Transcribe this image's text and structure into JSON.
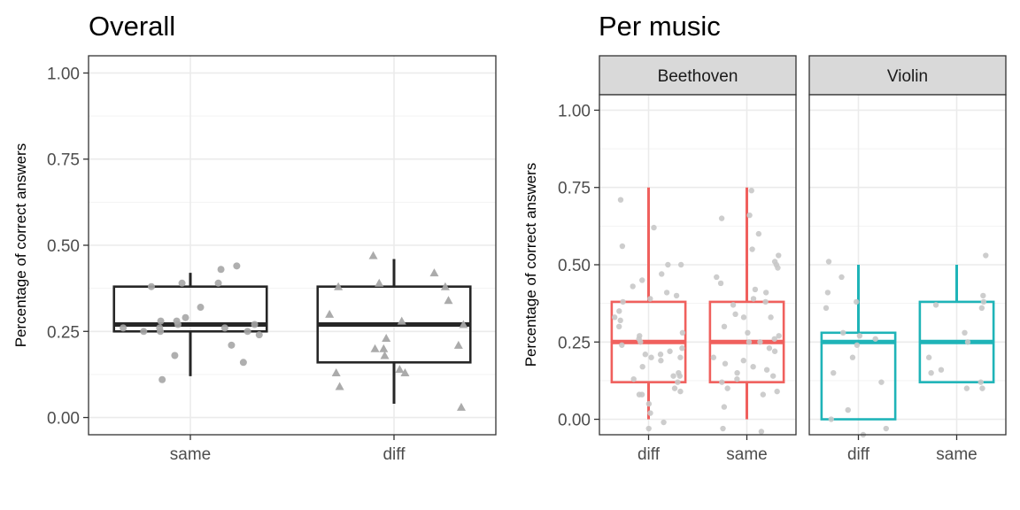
{
  "colors": {
    "overall": "#262626",
    "beethoven": "#f0605d",
    "violin": "#1fb4b8",
    "points_overall": "#a6a6a6",
    "points_facet": "#c8c8c8"
  },
  "chart_data": [
    {
      "type": "boxplot",
      "title": "Overall",
      "ylabel": "Percentage of correct answers",
      "xlabel": "",
      "ylim": [
        -0.05,
        1.05
      ],
      "yticks": [
        0.0,
        0.25,
        0.5,
        0.75,
        1.0
      ],
      "ytick_labels": [
        "0.00",
        "0.25",
        "0.50",
        "0.75",
        "1.00"
      ],
      "categories": [
        "same",
        "diff"
      ],
      "grid": true,
      "boxes": [
        {
          "category": "same",
          "whisker_low": 0.12,
          "q1": 0.25,
          "median": 0.27,
          "q3": 0.38,
          "whisker_high": 0.42
        },
        {
          "category": "diff",
          "whisker_low": 0.04,
          "q1": 0.16,
          "median": 0.27,
          "q3": 0.38,
          "whisker_high": 0.46
        }
      ],
      "points": [
        {
          "category": "same",
          "marker": "circle",
          "values": [
            0.44,
            0.39,
            0.43,
            0.39,
            0.38,
            0.32,
            0.29,
            0.28,
            0.28,
            0.27,
            0.27,
            0.26,
            0.26,
            0.26,
            0.25,
            0.25,
            0.25,
            0.24,
            0.21,
            0.18,
            0.16,
            0.11
          ]
        },
        {
          "category": "diff",
          "marker": "triangle",
          "values": [
            0.47,
            0.42,
            0.39,
            0.38,
            0.38,
            0.34,
            0.3,
            0.28,
            0.27,
            0.23,
            0.21,
            0.2,
            0.2,
            0.18,
            0.14,
            0.13,
            0.13,
            0.09,
            0.03
          ]
        }
      ]
    },
    {
      "type": "boxplot",
      "title": "Per music",
      "ylabel": "Percentage of correct answers",
      "xlabel": "",
      "ylim": [
        -0.05,
        1.05
      ],
      "yticks": [
        0.0,
        0.25,
        0.5,
        0.75,
        1.0
      ],
      "ytick_labels": [
        "0.00",
        "0.25",
        "0.50",
        "0.75",
        "1.00"
      ],
      "grid": true,
      "facets": [
        {
          "label": "Beethoven",
          "color_key": "beethoven",
          "categories": [
            "diff",
            "same"
          ],
          "boxes": [
            {
              "category": "diff",
              "whisker_low": 0.0,
              "q1": 0.12,
              "median": 0.25,
              "q3": 0.38,
              "whisker_high": 0.75
            },
            {
              "category": "same",
              "whisker_low": 0.0,
              "q1": 0.12,
              "median": 0.25,
              "q3": 0.38,
              "whisker_high": 0.75
            }
          ],
          "points": [
            {
              "category": "diff",
              "values": [
                0.71,
                0.62,
                0.56,
                0.5,
                0.5,
                0.47,
                0.45,
                0.43,
                0.41,
                0.4,
                0.39,
                0.38,
                0.35,
                0.33,
                0.32,
                0.3,
                0.28,
                0.27,
                0.26,
                0.25,
                0.24,
                0.23,
                0.22,
                0.21,
                0.21,
                0.2,
                0.2,
                0.19,
                0.17,
                0.15,
                0.14,
                0.14,
                0.13,
                0.12,
                0.1,
                0.09,
                0.08,
                0.08,
                0.05,
                0.02,
                -0.01,
                -0.03
              ]
            },
            {
              "category": "same",
              "values": [
                0.74,
                0.66,
                0.65,
                0.6,
                0.55,
                0.53,
                0.51,
                0.5,
                0.49,
                0.46,
                0.44,
                0.42,
                0.41,
                0.39,
                0.38,
                0.37,
                0.34,
                0.33,
                0.33,
                0.3,
                0.28,
                0.27,
                0.26,
                0.25,
                0.25,
                0.23,
                0.22,
                0.2,
                0.19,
                0.18,
                0.17,
                0.16,
                0.15,
                0.14,
                0.13,
                0.12,
                0.1,
                0.09,
                0.08,
                0.04,
                -0.03,
                -0.04
              ]
            }
          ]
        },
        {
          "label": "Violin",
          "color_key": "violin",
          "categories": [
            "diff",
            "same"
          ],
          "boxes": [
            {
              "category": "diff",
              "whisker_low": 0.0,
              "q1": 0.0,
              "median": 0.25,
              "q3": 0.28,
              "whisker_high": 0.5
            },
            {
              "category": "same",
              "whisker_low": 0.12,
              "q1": 0.12,
              "median": 0.25,
              "q3": 0.38,
              "whisker_high": 0.5
            }
          ],
          "points": [
            {
              "category": "diff",
              "values": [
                0.51,
                0.46,
                0.41,
                0.38,
                0.36,
                0.28,
                0.27,
                0.26,
                0.24,
                0.2,
                0.15,
                0.12,
                0.03,
                0.0,
                -0.03,
                -0.05
              ]
            },
            {
              "category": "same",
              "values": [
                0.53,
                0.4,
                0.38,
                0.37,
                0.36,
                0.28,
                0.25,
                0.2,
                0.16,
                0.15,
                0.12,
                0.1,
                0.1
              ]
            }
          ]
        }
      ]
    }
  ]
}
